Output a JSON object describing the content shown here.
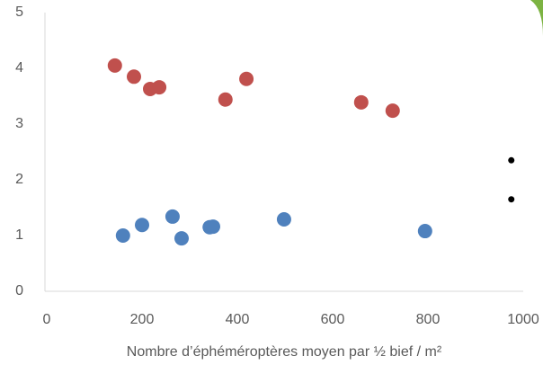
{
  "chart_data": {
    "type": "scatter",
    "x_label": "Nombre d’éphéméroptères moyen par ½ bief / m²",
    "xlim": [
      0,
      1000
    ],
    "xticks": [
      0,
      200,
      400,
      600,
      800,
      1000
    ],
    "ylim": [
      0,
      5
    ],
    "yticks": [
      0,
      1,
      2,
      3,
      4,
      5
    ],
    "series": [
      {
        "color": "#c0504d",
        "marker_size": 8,
        "x": [
          143,
          183,
          217,
          236,
          375,
          419,
          660,
          726
        ],
        "values": [
          4.05,
          3.85,
          3.63,
          3.66,
          3.44,
          3.81,
          3.39,
          3.24
        ]
      },
      {
        "color": "#4f81bd",
        "marker_size": 8,
        "x": [
          160,
          200,
          264,
          283,
          342,
          349,
          498,
          794
        ],
        "values": [
          1.0,
          1.19,
          1.34,
          0.95,
          1.15,
          1.16,
          1.29,
          1.08
        ]
      },
      {
        "color": "#000000",
        "marker_size": 3.5,
        "x": [
          975,
          975
        ],
        "values": [
          2.35,
          1.65
        ]
      }
    ]
  }
}
